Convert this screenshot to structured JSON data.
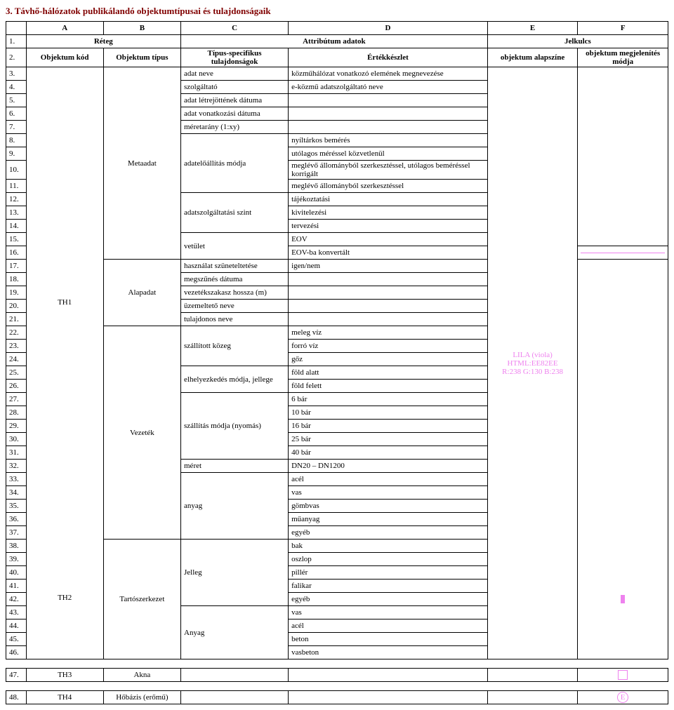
{
  "title": "3. Távhő-hálózatok publikálandó objektumtípusai és tulajdonságaik",
  "colHeaders": [
    "A",
    "B",
    "C",
    "D",
    "E",
    "F"
  ],
  "row1": {
    "no": "1.",
    "b": "Réteg",
    "d": "Attribútum adatok",
    "f": "Jelkulcs"
  },
  "row2": {
    "no": "2.",
    "b": "Objektum kód",
    "c": "Objektum típus",
    "d": "Típus-specifikus tulajdonságok",
    "e": "Értékkészlet",
    "f": "objektum alapszíne",
    "g": "objektum megjelenítés módja"
  },
  "nums": {
    "3": "3.",
    "4": "4.",
    "5": "5.",
    "6": "6.",
    "7": "7.",
    "8": "8.",
    "9": "9.",
    "10": "10.",
    "11": "11.",
    "12": "12.",
    "13": "13.",
    "14": "14.",
    "15": "15.",
    "16": "16.",
    "17": "17.",
    "18": "18.",
    "19": "19.",
    "20": "20.",
    "21": "21.",
    "22": "22.",
    "23": "23.",
    "24": "24.",
    "25": "25.",
    "26": "26.",
    "27": "27.",
    "28": "28.",
    "29": "29.",
    "30": "30.",
    "31": "31.",
    "32": "32.",
    "33": "33.",
    "34": "34.",
    "35": "35.",
    "36": "36.",
    "37": "37.",
    "38": "38.",
    "39": "39.",
    "40": "40.",
    "41": "41.",
    "42": "42.",
    "43": "43.",
    "44": "44.",
    "45": "45.",
    "46": "46.",
    "47": "47.",
    "48": "48."
  },
  "c": {
    "metaadat": "Metaadat",
    "alapadat": "Alapadat",
    "vezetek": "Vezeték",
    "tartoszer": "Tartószerkezet",
    "akna": "Akna",
    "hobazis": "Hőbázis (erőmű)"
  },
  "b": {
    "th1": "TH1",
    "th2": "TH2",
    "th3": "TH3",
    "th4": "TH4"
  },
  "d": {
    "adatneve": "adat neve",
    "szolgaltato": "szolgáltató",
    "letrejott": "adat létrejöttének dátuma",
    "vonatkozasi": "adat vonatkozási dátuma",
    "meretarany": "méretarány (1:xy)",
    "adateloallitas": "adatelőállítás módja",
    "adatszolg": "adatszolgáltatási szint",
    "vetulet": "vetület",
    "hasznalat": "használat szüneteltetése",
    "megszunes": "megszűnés dátuma",
    "vezetekszakasz": "vezetékszakasz hossza (m)",
    "uzemelteto": "üzemeltető neve",
    "tulajdonos": "tulajdonos neve",
    "szallitott": "szállított közeg",
    "elhelyezkedes": "elhelyezkedés módja, jellege",
    "szallitasmodja": "szállítás módja (nyomás)",
    "meret": "méret",
    "anyagL": "anyag",
    "jelleg": "Jelleg",
    "anyagU": "Anyag"
  },
  "e": {
    "kozmuhalozat": "közműhálózat vonatkozó elemének megnevezése",
    "ekozmu": "e-közmű adatszolgáltató neve",
    "nyiltarkos": "nyíltárkos bemérés",
    "utolagos": "utólagos méréssel közvetlenül",
    "meglevo1": "meglévő állományból szerkesztéssel, utólagos beméréssel korrigált",
    "meglevo2": "meglévő állományból szerkesztéssel",
    "tajekoztatasi": "tájékoztatási",
    "kivitelezesi": "kivitelezési",
    "tervezesi": "tervezési",
    "eov": "EOV",
    "eovba": "EOV-ba konvertált",
    "igennem": "igen/nem",
    "melegviz": "meleg víz",
    "forroviz": "forró víz",
    "goz": "gőz",
    "foldalatt": "föld alatt",
    "foldfelett": "föld felett",
    "bar6": "6 bár",
    "bar10": "10 bár",
    "bar16": "16 bár",
    "bar25": "25 bár",
    "bar40": "40 bár",
    "dn": "DN20 – DN1200",
    "acel": "acél",
    "vas": "vas",
    "gombvas": "gömbvas",
    "muanyag": "műanyag",
    "egyeb": "egyéb",
    "bak": "bak",
    "oszlop": "oszlop",
    "piller": "pillér",
    "falikar": "falikar",
    "beton": "beton",
    "vasbeton": "vasbeton"
  },
  "colorLabel": {
    "l1": "LILA (viola)",
    "l2": "HTML:EE82EE",
    "l3": "R:238 G:130 B:238"
  },
  "symbolE": "E"
}
